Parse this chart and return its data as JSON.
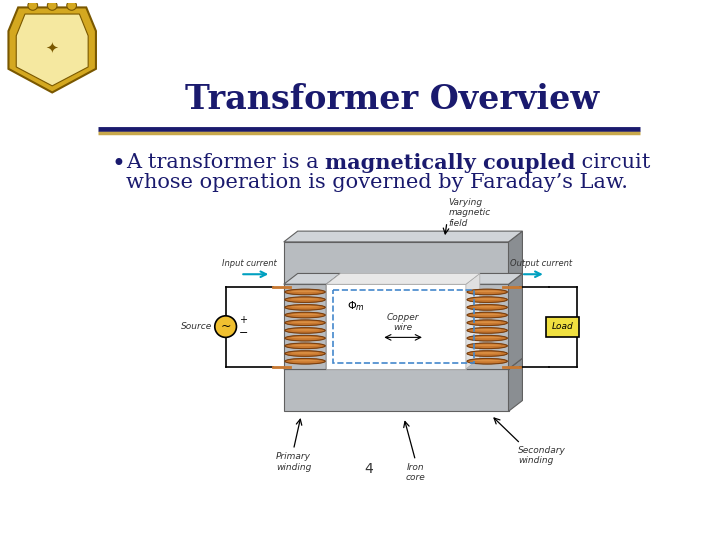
{
  "title": "Transformer Overview",
  "title_color": "#1a1a6e",
  "title_fontsize": 24,
  "separator_blue_color": "#1a1a6e",
  "separator_gold_color": "#c8a84b",
  "bullet_color": "#1a1a6e",
  "bullet_fontsize": 15,
  "bullet_normal1": "A transformer is a ",
  "bullet_bold": "magnetically coupled",
  "bullet_normal2": " circuit",
  "bullet_line2": "whose operation is governed by Faraday’s Law.",
  "page_number": "4",
  "bg_color": "#ffffff",
  "core_color": "#b8bcc0",
  "core_dark": "#8a8e92",
  "core_side": "#9ea2a6",
  "coil_color": "#c87830",
  "coil_edge": "#7a4010",
  "coil_highlight": "#e8a050",
  "wire_color": "#c87830",
  "source_color": "#f0c030",
  "load_color": "#f0e040",
  "arrow_color": "#00a0c0",
  "label_color": "#333333",
  "dashed_color": "#4488cc"
}
